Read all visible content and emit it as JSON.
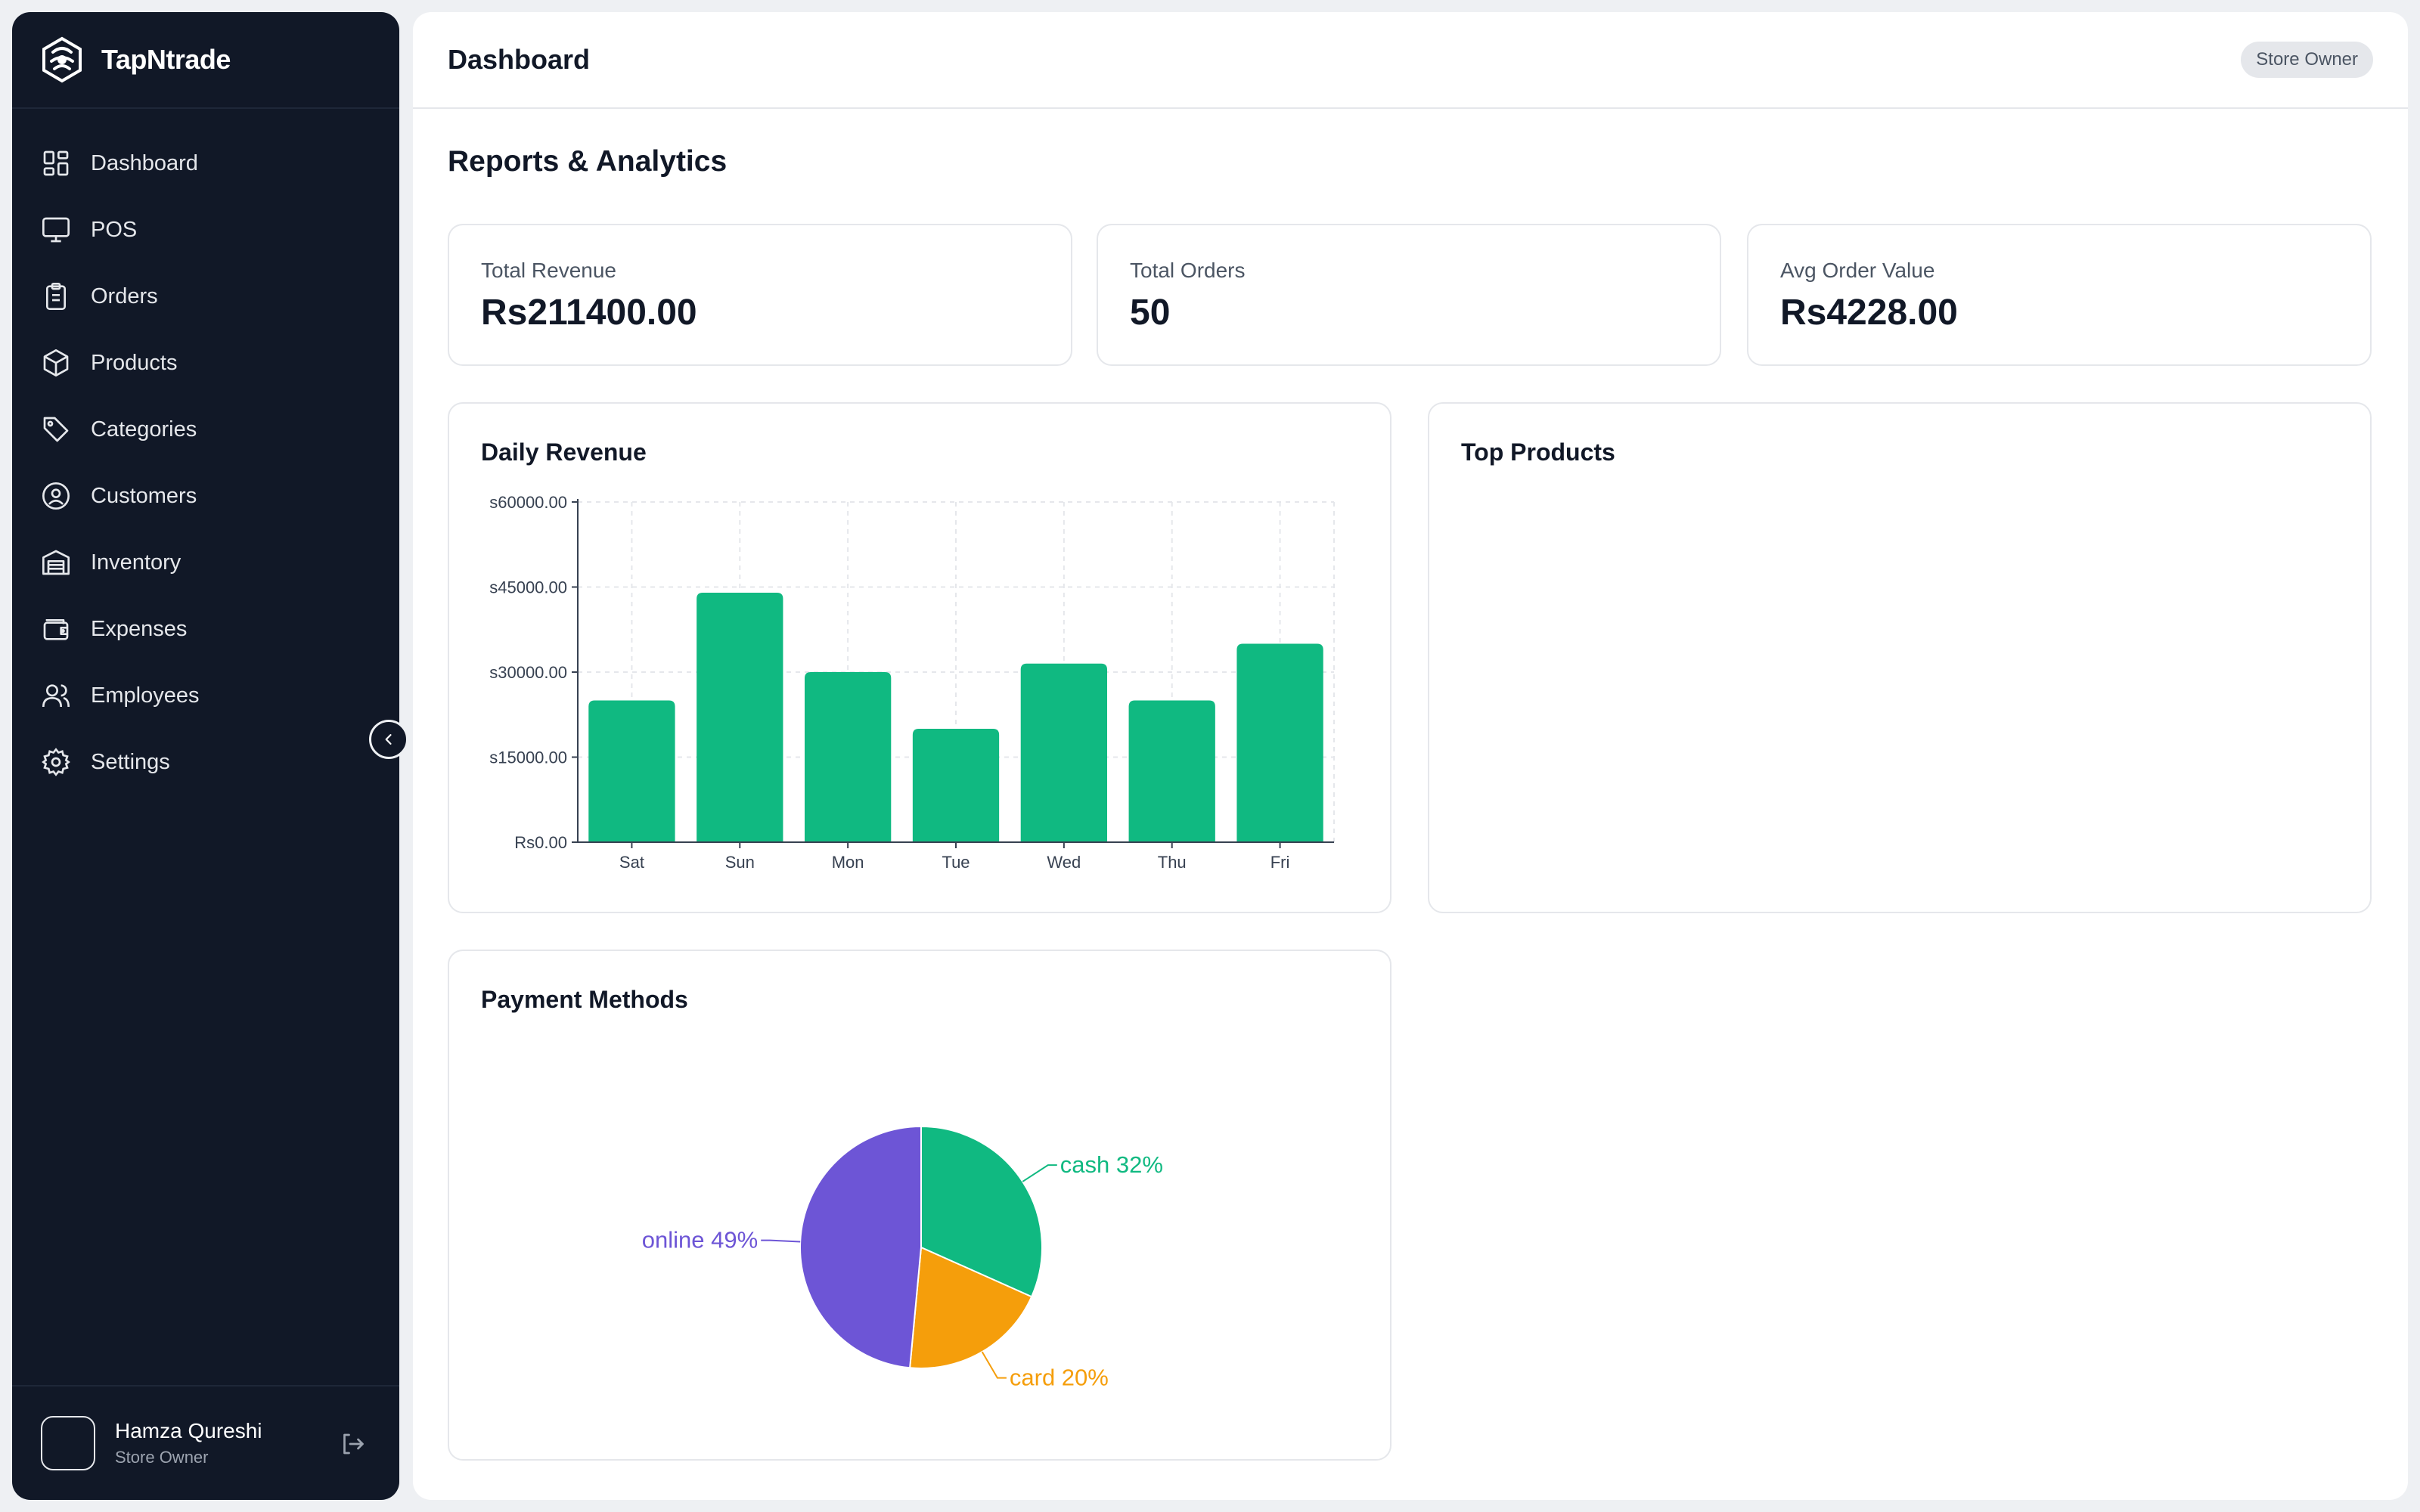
{
  "app": {
    "name": "TapNtrade"
  },
  "sidebar": {
    "items": [
      {
        "label": "Dashboard",
        "icon": "dashboard-grid-icon"
      },
      {
        "label": "POS",
        "icon": "monitor-icon"
      },
      {
        "label": "Orders",
        "icon": "clipboard-icon"
      },
      {
        "label": "Products",
        "icon": "box-icon"
      },
      {
        "label": "Categories",
        "icon": "tag-icon"
      },
      {
        "label": "Customers",
        "icon": "user-circle-icon"
      },
      {
        "label": "Inventory",
        "icon": "warehouse-icon"
      },
      {
        "label": "Expenses",
        "icon": "wallet-icon"
      },
      {
        "label": "Employees",
        "icon": "users-icon"
      },
      {
        "label": "Settings",
        "icon": "gear-icon"
      }
    ]
  },
  "user": {
    "name": "Hamza Qureshi",
    "role": "Store Owner"
  },
  "header": {
    "title": "Dashboard",
    "role_badge": "Store Owner"
  },
  "page": {
    "title": "Reports & Analytics"
  },
  "stats": [
    {
      "label": "Total Revenue",
      "value": "Rs211400.00"
    },
    {
      "label": "Total Orders",
      "value": "50"
    },
    {
      "label": "Avg Order Value",
      "value": "Rs4228.00"
    }
  ],
  "cards": {
    "daily_revenue": "Daily Revenue",
    "top_products": "Top Products",
    "payment_methods": "Payment Methods"
  },
  "colors": {
    "sidebar_bg": "#111827",
    "accent_green": "#10b981",
    "purple": "#6d55d6",
    "orange": "#f59e0b"
  },
  "chart_data": [
    {
      "type": "bar",
      "title": "Daily Revenue",
      "categories": [
        "Sat",
        "Sun",
        "Mon",
        "Tue",
        "Wed",
        "Thu",
        "Fri"
      ],
      "values": [
        25000,
        44000,
        30000,
        20000,
        31500,
        25000,
        35000
      ],
      "yticks": [
        0,
        15000,
        30000,
        45000,
        60000
      ],
      "ytick_labels": [
        "Rs0.00",
        "s15000.00",
        "s30000.00",
        "s45000.00",
        "s60000.00"
      ],
      "ylim": [
        0,
        60000
      ],
      "grid": true
    },
    {
      "type": "pie",
      "title": "Payment Methods",
      "slices": [
        {
          "name": "cash",
          "value": 32,
          "label": "cash 32%",
          "color": "#10b981"
        },
        {
          "name": "card",
          "value": 20,
          "label": "card 20%",
          "color": "#f59e0b"
        },
        {
          "name": "online",
          "value": 49,
          "label": "online 49%",
          "color": "#6d55d6"
        }
      ]
    }
  ]
}
